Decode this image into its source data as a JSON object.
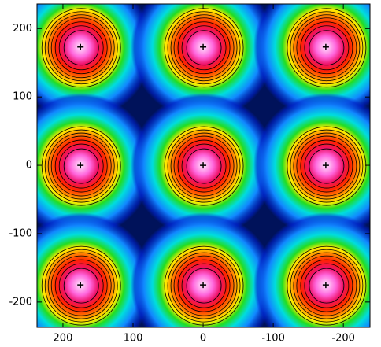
{
  "chart_data": {
    "type": "scatter",
    "x": [
      175,
      0,
      -175,
      175,
      0,
      -175,
      175,
      0,
      -175
    ],
    "values": [
      173,
      173,
      173,
      0,
      0,
      0,
      -175,
      -175,
      -175
    ],
    "xlim": [
      237,
      -238
    ],
    "ylim": [
      -237,
      236
    ],
    "xticks": [
      200,
      100,
      0,
      -100,
      -200
    ],
    "yticks": [
      200,
      100,
      0,
      -100,
      -200
    ],
    "color": "#000000"
  }
}
